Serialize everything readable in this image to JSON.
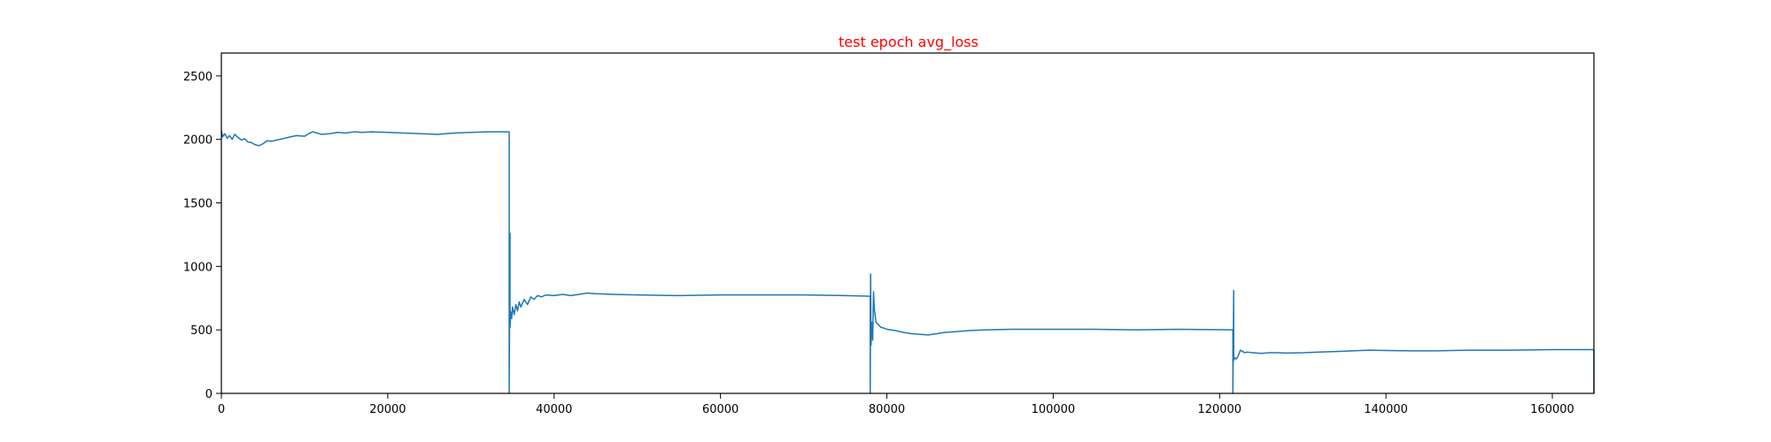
{
  "chart_data": {
    "type": "line",
    "title": "test epoch avg_loss",
    "title_color": "#ff0000",
    "line_color": "#1f77b4",
    "xlabel": "",
    "ylabel": "",
    "xlim": [
      0,
      165000
    ],
    "ylim": [
      0,
      2680
    ],
    "x_ticks": [
      0,
      20000,
      40000,
      60000,
      80000,
      100000,
      120000,
      140000,
      160000
    ],
    "x_tick_labels": [
      "0",
      "20000",
      "40000",
      "60000",
      "80000",
      "100000",
      "120000",
      "140000",
      "160000"
    ],
    "y_ticks": [
      0,
      500,
      1000,
      1500,
      2000,
      2500
    ],
    "y_tick_labels": [
      "0",
      "500",
      "1000",
      "1500",
      "2000",
      "2500"
    ],
    "grid": false,
    "series": [
      {
        "x": [
          0,
          150,
          400,
          700,
          1000,
          1300,
          1600,
          2000,
          2400,
          2800,
          3200,
          3600,
          4000,
          4500,
          5000,
          5500,
          6000,
          7000,
          8000,
          9000,
          10000,
          10500,
          11000,
          11500,
          12000,
          13000,
          14000,
          15000,
          16000,
          17000,
          18000,
          20000,
          22000,
          24000,
          26000,
          28000,
          30000,
          32000,
          34000,
          34600,
          34601,
          34700,
          34701,
          34800,
          34900,
          35000,
          35200,
          35400,
          35600,
          35800,
          36000,
          36400,
          36800,
          37200,
          37600,
          38000,
          38500,
          39000,
          40000,
          41000,
          42000,
          43000,
          44000,
          45000,
          47000,
          50000,
          55000,
          60000,
          65000,
          70000,
          75000,
          78000,
          78001,
          78050,
          78100,
          78200,
          78300,
          78400,
          78500,
          78700,
          79000,
          79300,
          79600,
          80000,
          81000,
          82000,
          83000,
          84000,
          85000,
          86000,
          87000,
          88000,
          89000,
          90000,
          92000,
          95000,
          100000,
          105000,
          110000,
          115000,
          121600,
          121601,
          121700,
          121701,
          121800,
          122000,
          122200,
          122500,
          122800,
          123000,
          123300,
          124000,
          125000,
          126000,
          127000,
          128000,
          130000,
          132000,
          134000,
          136000,
          138000,
          140000,
          143000,
          146000,
          150000,
          155000,
          160000,
          165000,
          165001
        ],
        "y": [
          2070,
          2020,
          2045,
          2010,
          2030,
          2000,
          2040,
          2015,
          1995,
          2005,
          1980,
          1975,
          1960,
          1950,
          1965,
          1990,
          1985,
          2000,
          2015,
          2030,
          2025,
          2045,
          2060,
          2050,
          2040,
          2045,
          2055,
          2050,
          2060,
          2055,
          2060,
          2055,
          2050,
          2045,
          2040,
          2050,
          2055,
          2060,
          2060,
          2060,
          0,
          1260,
          520,
          640,
          590,
          680,
          620,
          700,
          650,
          720,
          680,
          740,
          700,
          760,
          740,
          770,
          760,
          775,
          770,
          780,
          770,
          780,
          790,
          785,
          780,
          775,
          770,
          775,
          775,
          775,
          770,
          765,
          0,
          940,
          380,
          560,
          420,
          800,
          660,
          560,
          540,
          520,
          515,
          505,
          495,
          480,
          470,
          465,
          460,
          470,
          480,
          485,
          490,
          495,
          500,
          505,
          505,
          505,
          500,
          505,
          500,
          0,
          810,
          260,
          280,
          270,
          290,
          340,
          330,
          320,
          325,
          320,
          315,
          320,
          320,
          318,
          320,
          325,
          330,
          335,
          340,
          338,
          335,
          335,
          340,
          340,
          345,
          345,
          0
        ]
      }
    ]
  }
}
